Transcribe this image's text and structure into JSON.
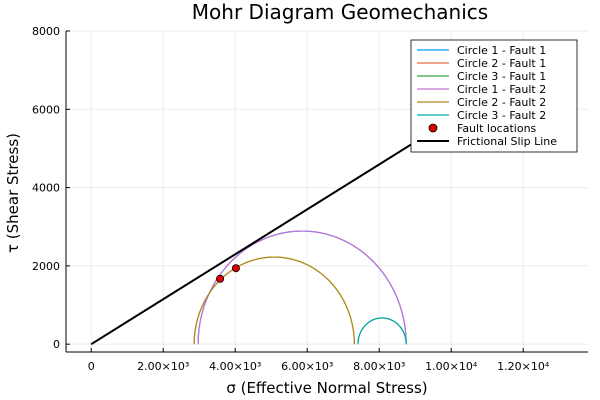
{
  "chart_data": {
    "type": "line",
    "title": "Mohr Diagram Geomechanics",
    "xlabel": "σ (Effective Normal Stress)",
    "ylabel": "τ (Shear Stress)",
    "xlim": [
      -700,
      13800
    ],
    "ylim": [
      -200,
      8000
    ],
    "x_ticks": [
      {
        "value": 0,
        "label": "0"
      },
      {
        "value": 2000,
        "label": "2.00×10³"
      },
      {
        "value": 4000,
        "label": "4.00×10³"
      },
      {
        "value": 6000,
        "label": "6.00×10³"
      },
      {
        "value": 8000,
        "label": "8.00×10³"
      },
      {
        "value": 10000,
        "label": "1.00×10⁴"
      },
      {
        "value": 12000,
        "label": "1.20×10⁴"
      }
    ],
    "y_ticks": [
      {
        "value": 0,
        "label": "0"
      },
      {
        "value": 2000,
        "label": "2000"
      },
      {
        "value": 4000,
        "label": "4000"
      },
      {
        "value": 6000,
        "label": "6000"
      },
      {
        "value": 8000,
        "label": "8000"
      }
    ],
    "grid": true,
    "legend_position": "top-right",
    "series": [
      {
        "name": "Circle 1 - Fault 1",
        "kind": "semicircle",
        "center": 5860,
        "radius": 2890,
        "color": "#009AFA"
      },
      {
        "name": "Circle 2 - Fault 1",
        "kind": "semicircle",
        "center": 5085,
        "radius": 2225,
        "color": "#E36F47"
      },
      {
        "name": "Circle 3 - Fault 1",
        "kind": "semicircle",
        "center": 8080,
        "radius": 670,
        "color": "#3EA44E"
      },
      {
        "name": "Circle 1 - Fault 2",
        "kind": "semicircle",
        "center": 5860,
        "radius": 2890,
        "color": "#C371D2"
      },
      {
        "name": "Circle 2 - Fault 2",
        "kind": "semicircle",
        "center": 5085,
        "radius": 2225,
        "color": "#AC8D18"
      },
      {
        "name": "Circle 3 - Fault 2",
        "kind": "semicircle",
        "center": 8080,
        "radius": 670,
        "color": "#00A9AD"
      },
      {
        "name": "Fault locations",
        "kind": "scatter",
        "color": "#E00000",
        "points": [
          {
            "x": 3580,
            "y": 1670
          },
          {
            "x": 4020,
            "y": 1940
          }
        ]
      },
      {
        "name": "Frictional Slip Line",
        "kind": "line",
        "color": "#000000",
        "points": [
          {
            "x": 0,
            "y": 0
          },
          {
            "x": 13500,
            "y": 7750
          }
        ]
      }
    ]
  }
}
